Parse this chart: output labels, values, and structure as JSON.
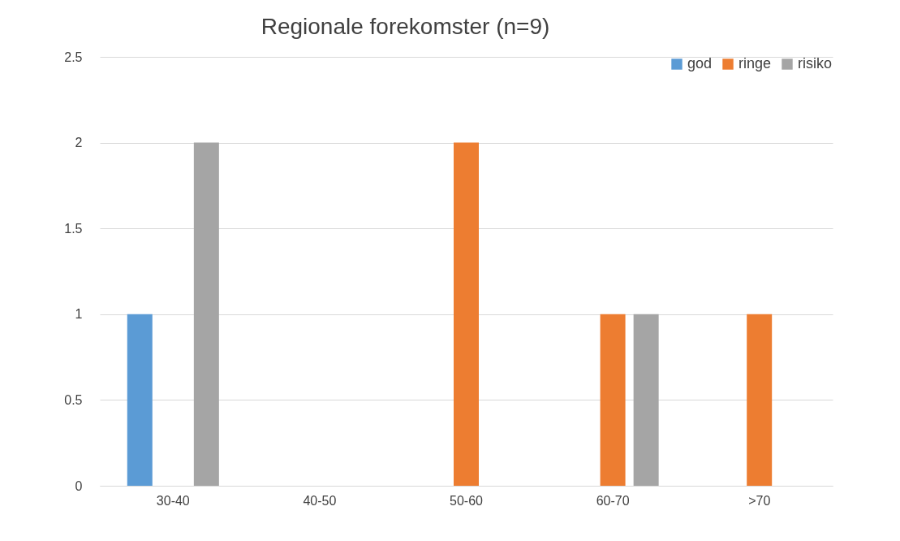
{
  "chart_data": {
    "type": "bar",
    "title": "Regionale forekomster (n=9)",
    "categories": [
      "30-40",
      "40-50",
      "50-60",
      "60-70",
      ">70"
    ],
    "series": [
      {
        "name": "god",
        "color": "#5b9bd5",
        "values": [
          1,
          0,
          0,
          0,
          0
        ]
      },
      {
        "name": "ringe",
        "color": "#ed7d31",
        "values": [
          0,
          0,
          2,
          1,
          1
        ]
      },
      {
        "name": "risiko",
        "color": "#a5a5a5",
        "values": [
          2,
          0,
          0,
          1,
          0
        ]
      }
    ],
    "ylim": [
      0,
      2.5
    ],
    "yticks": [
      0,
      0.5,
      1,
      1.5,
      2,
      2.5
    ],
    "grid": "y",
    "legend": "top right"
  }
}
